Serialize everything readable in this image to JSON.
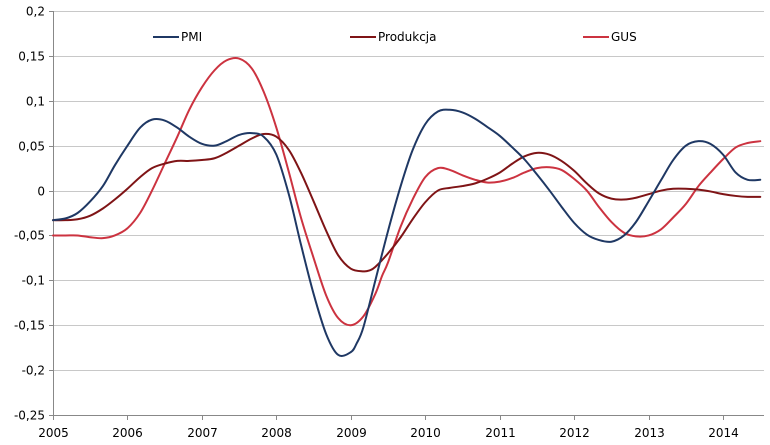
{
  "chart_data": {
    "type": "line",
    "title": "",
    "xlabel": "",
    "ylabel": "",
    "xlim": [
      2005,
      2014.55
    ],
    "ylim": [
      -0.25,
      0.2
    ],
    "grid": true,
    "legend_position": "top",
    "y_ticks": [
      {
        "value": 0.2,
        "label": "0,2"
      },
      {
        "value": 0.15,
        "label": "0,15"
      },
      {
        "value": 0.1,
        "label": "0,1"
      },
      {
        "value": 0.05,
        "label": "0,05"
      },
      {
        "value": 0,
        "label": "0"
      },
      {
        "value": -0.05,
        "label": "-0,05"
      },
      {
        "value": -0.1,
        "label": "-0,1"
      },
      {
        "value": -0.15,
        "label": "-0,15"
      },
      {
        "value": -0.2,
        "label": "-0,2"
      },
      {
        "value": -0.25,
        "label": "-0,25"
      }
    ],
    "x_ticks": [
      {
        "value": 2005,
        "label": "2005"
      },
      {
        "value": 2006,
        "label": "2006"
      },
      {
        "value": 2007,
        "label": "2007"
      },
      {
        "value": 2008,
        "label": "2008"
      },
      {
        "value": 2009,
        "label": "2009"
      },
      {
        "value": 2010,
        "label": "2010"
      },
      {
        "value": 2011,
        "label": "2011"
      },
      {
        "value": 2012,
        "label": "2012"
      },
      {
        "value": 2013,
        "label": "2013"
      },
      {
        "value": 2014,
        "label": "2014"
      }
    ],
    "series": [
      {
        "name": "PMI",
        "color": "#1f3864",
        "x": [
          2005.0,
          2005.17,
          2005.33,
          2005.5,
          2005.67,
          2005.83,
          2006.0,
          2006.17,
          2006.33,
          2006.5,
          2006.67,
          2006.83,
          2007.0,
          2007.17,
          2007.33,
          2007.5,
          2007.67,
          2007.83,
          2008.0,
          2008.17,
          2008.33,
          2008.5,
          2008.67,
          2008.83,
          2009.0,
          2009.08,
          2009.17,
          2009.33,
          2009.5,
          2009.67,
          2009.83,
          2010.0,
          2010.17,
          2010.33,
          2010.5,
          2010.67,
          2010.83,
          2011.0,
          2011.17,
          2011.33,
          2011.5,
          2011.67,
          2011.83,
          2012.0,
          2012.17,
          2012.33,
          2012.5,
          2012.67,
          2012.83,
          2013.0,
          2013.17,
          2013.33,
          2013.5,
          2013.67,
          2013.83,
          2014.0,
          2014.17,
          2014.33,
          2014.5
        ],
        "values": [
          -0.033,
          -0.031,
          -0.025,
          -0.012,
          0.005,
          0.028,
          0.05,
          0.07,
          0.079,
          0.078,
          0.07,
          0.06,
          0.052,
          0.05,
          0.055,
          0.062,
          0.064,
          0.06,
          0.04,
          -0.005,
          -0.06,
          -0.115,
          -0.16,
          -0.183,
          -0.18,
          -0.17,
          -0.152,
          -0.1,
          -0.045,
          0.005,
          0.045,
          0.074,
          0.088,
          0.09,
          0.087,
          0.08,
          0.071,
          0.061,
          0.048,
          0.035,
          0.018,
          0.0,
          -0.018,
          -0.036,
          -0.049,
          -0.055,
          -0.057,
          -0.05,
          -0.035,
          -0.012,
          0.012,
          0.034,
          0.05,
          0.055,
          0.052,
          0.04,
          0.02,
          0.012,
          0.012
        ]
      },
      {
        "name": "Produkcja",
        "color": "#7f1416",
        "x": [
          2005.0,
          2005.17,
          2005.33,
          2005.5,
          2005.67,
          2005.83,
          2006.0,
          2006.17,
          2006.33,
          2006.5,
          2006.67,
          2006.83,
          2007.0,
          2007.17,
          2007.33,
          2007.5,
          2007.67,
          2007.83,
          2008.0,
          2008.17,
          2008.33,
          2008.5,
          2008.67,
          2008.83,
          2009.0,
          2009.17,
          2009.25,
          2009.33,
          2009.5,
          2009.67,
          2009.83,
          2010.0,
          2010.17,
          2010.33,
          2010.5,
          2010.67,
          2010.83,
          2011.0,
          2011.17,
          2011.33,
          2011.5,
          2011.67,
          2011.83,
          2012.0,
          2012.17,
          2012.33,
          2012.5,
          2012.67,
          2012.83,
          2013.0,
          2013.17,
          2013.33,
          2013.5,
          2013.67,
          2013.83,
          2014.0,
          2014.17,
          2014.33,
          2014.5
        ],
        "values": [
          -0.033,
          -0.033,
          -0.032,
          -0.028,
          -0.02,
          -0.01,
          0.002,
          0.015,
          0.025,
          0.03,
          0.033,
          0.033,
          0.034,
          0.036,
          0.042,
          0.05,
          0.058,
          0.063,
          0.06,
          0.045,
          0.02,
          -0.012,
          -0.045,
          -0.072,
          -0.087,
          -0.09,
          -0.089,
          -0.085,
          -0.07,
          -0.052,
          -0.032,
          -0.013,
          0.0,
          0.003,
          0.005,
          0.008,
          0.013,
          0.02,
          0.03,
          0.038,
          0.042,
          0.04,
          0.033,
          0.022,
          0.008,
          -0.003,
          -0.009,
          -0.01,
          -0.008,
          -0.004,
          0.0,
          0.002,
          0.002,
          0.001,
          -0.001,
          -0.004,
          -0.006,
          -0.007,
          -0.007
        ]
      },
      {
        "name": "GUS",
        "color": "#cc3340",
        "x": [
          2005.0,
          2005.17,
          2005.33,
          2005.5,
          2005.67,
          2005.83,
          2006.0,
          2006.17,
          2006.33,
          2006.5,
          2006.67,
          2006.83,
          2007.0,
          2007.17,
          2007.33,
          2007.5,
          2007.67,
          2007.83,
          2008.0,
          2008.17,
          2008.33,
          2008.5,
          2008.67,
          2008.83,
          2009.0,
          2009.17,
          2009.33,
          2009.42,
          2009.5,
          2009.67,
          2009.83,
          2010.0,
          2010.17,
          2010.33,
          2010.5,
          2010.67,
          2010.83,
          2011.0,
          2011.17,
          2011.33,
          2011.5,
          2011.67,
          2011.83,
          2012.0,
          2012.17,
          2012.33,
          2012.5,
          2012.67,
          2012.83,
          2013.0,
          2013.17,
          2013.33,
          2013.5,
          2013.67,
          2013.83,
          2014.0,
          2014.17,
          2014.33,
          2014.5
        ],
        "values": [
          -0.05,
          -0.05,
          -0.05,
          -0.052,
          -0.053,
          -0.05,
          -0.042,
          -0.025,
          0.0,
          0.03,
          0.06,
          0.09,
          0.115,
          0.134,
          0.145,
          0.147,
          0.136,
          0.11,
          0.07,
          0.02,
          -0.03,
          -0.075,
          -0.117,
          -0.142,
          -0.15,
          -0.14,
          -0.115,
          -0.095,
          -0.08,
          -0.04,
          -0.01,
          0.015,
          0.025,
          0.023,
          0.017,
          0.012,
          0.009,
          0.01,
          0.014,
          0.02,
          0.025,
          0.026,
          0.023,
          0.013,
          0.0,
          -0.018,
          -0.035,
          -0.047,
          -0.051,
          -0.05,
          -0.043,
          -0.03,
          -0.015,
          0.005,
          0.02,
          0.035,
          0.048,
          0.053,
          0.055
        ]
      }
    ]
  }
}
